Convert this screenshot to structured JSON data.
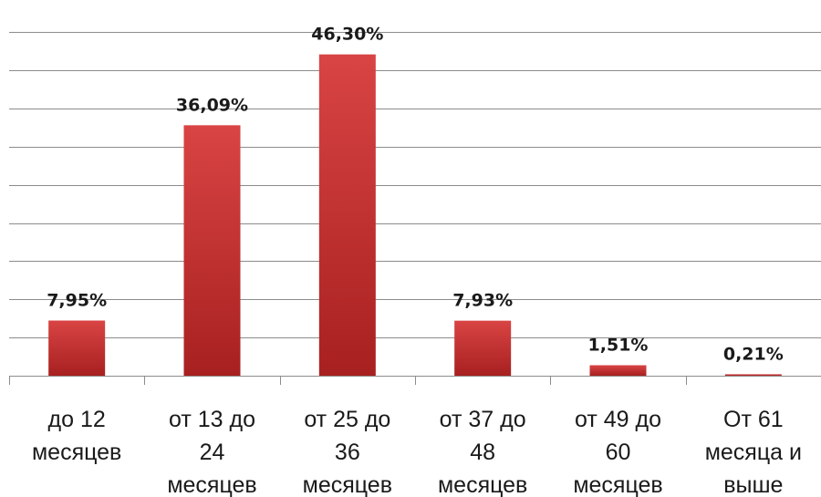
{
  "chart_data": {
    "type": "bar",
    "categories": [
      [
        "до 12",
        "месяцев"
      ],
      [
        "от 13 до",
        "24",
        "месяцев"
      ],
      [
        "от 25 до",
        "36",
        "месяцев"
      ],
      [
        "от 37 до",
        "48",
        "месяцев"
      ],
      [
        "от 49 до",
        "60",
        "месяцев"
      ],
      [
        "От 61",
        "месяца и",
        "выше"
      ]
    ],
    "values": [
      7.95,
      36.09,
      46.3,
      7.93,
      1.51,
      0.21
    ],
    "data_labels": [
      "7,95%",
      "36,09%",
      "46,30%",
      "7,93%",
      "1,51%",
      "0,21%"
    ],
    "ylim": [
      0,
      50
    ],
    "y_gridline_step": 5.5,
    "grid": true,
    "legend": "none",
    "bar_color_top": "#d94444",
    "bar_color_bottom": "#a82020"
  }
}
